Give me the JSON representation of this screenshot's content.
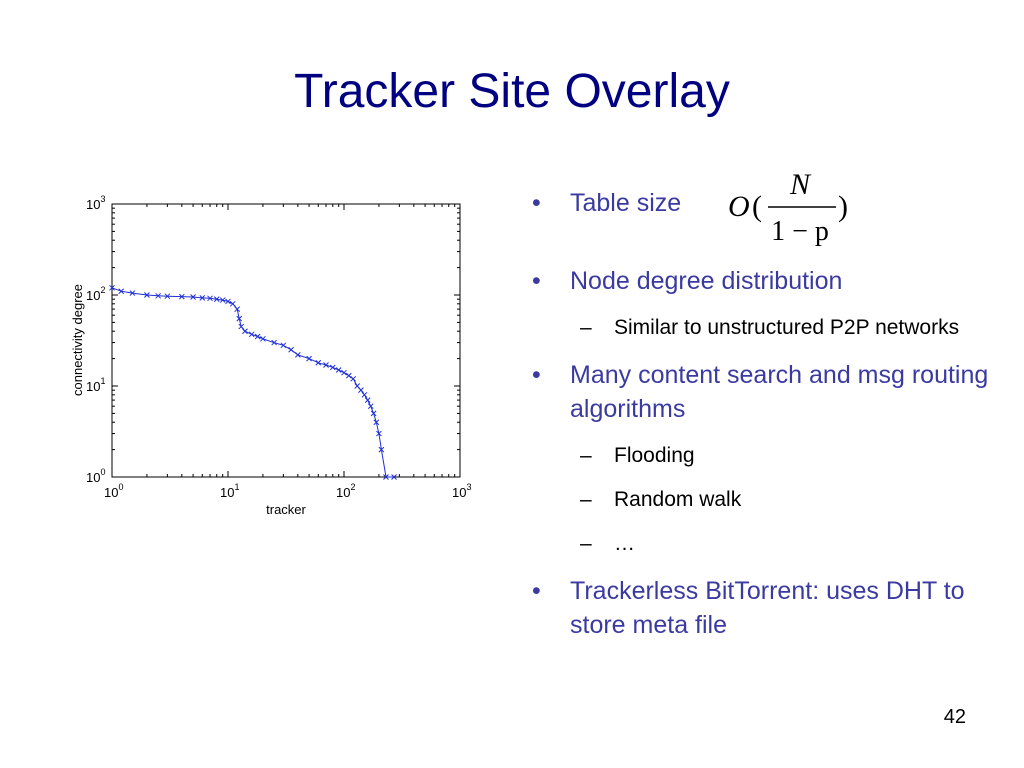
{
  "slide": {
    "title": "Tracker Site Overlay",
    "page_number": "42"
  },
  "bullets": [
    {
      "text": "Table size",
      "subs": []
    },
    {
      "text": "Node degree distribution",
      "subs": [
        "Similar to unstructured P2P networks"
      ]
    },
    {
      "text": "Many content search and msg routing algorithms",
      "subs": [
        "Flooding",
        "Random walk",
        "…"
      ]
    },
    {
      "text": "Trackerless BitTorrent: uses DHT to store meta file",
      "subs": []
    }
  ],
  "formula": {
    "O": "O",
    "lparen": "(",
    "num": "N",
    "den": "1 − p",
    "rparen": ")"
  },
  "colors": {
    "title": "#000080",
    "bullet": "#3a3aa0",
    "series": "#1f2fd6"
  },
  "chart_data": {
    "type": "line",
    "xlabel": "tracker",
    "ylabel": "connectivity degree",
    "xscale": "log",
    "yscale": "log",
    "xlim": [
      1,
      1000
    ],
    "ylim": [
      1,
      1000
    ],
    "xticks": [
      {
        "base": "10",
        "exp": "0"
      },
      {
        "base": "10",
        "exp": "1"
      },
      {
        "base": "10",
        "exp": "2"
      },
      {
        "base": "10",
        "exp": "3"
      }
    ],
    "yticks": [
      {
        "base": "10",
        "exp": "0"
      },
      {
        "base": "10",
        "exp": "1"
      },
      {
        "base": "10",
        "exp": "2"
      },
      {
        "base": "10",
        "exp": "3"
      }
    ],
    "grid": false,
    "series": [
      {
        "x": [
          1.0,
          1.2,
          1.5,
          2.0,
          2.5,
          3.0,
          4.0,
          5.0,
          6.0,
          7.0,
          8.0,
          9.0,
          10.0,
          11.0,
          12.0,
          12.5,
          13.0,
          14.0,
          16.0,
          18.0,
          20.0,
          25.0,
          30.0,
          35.0,
          40.0,
          50.0,
          60.0,
          70.0,
          80.0,
          90.0,
          100.0,
          110.0,
          120.0,
          130.0,
          140.0,
          150.0,
          160.0,
          170.0,
          180.0,
          190.0,
          200.0,
          210.0,
          230.0,
          270.0
        ],
        "y": [
          120.0,
          110.0,
          105.0,
          100.0,
          98.0,
          97.0,
          96.0,
          95.0,
          93.0,
          92.0,
          90.0,
          88.0,
          85.0,
          80.0,
          70.0,
          55.0,
          45.0,
          40.0,
          37.0,
          35.0,
          33.0,
          30.0,
          28.0,
          25.0,
          22.0,
          20.0,
          18.0,
          17.0,
          16.0,
          15.0,
          14.0,
          13.0,
          12.0,
          10.0,
          9.0,
          8.0,
          7.0,
          6.0,
          5.0,
          4.0,
          3.0,
          2.0,
          1.0,
          1.0
        ]
      }
    ]
  }
}
